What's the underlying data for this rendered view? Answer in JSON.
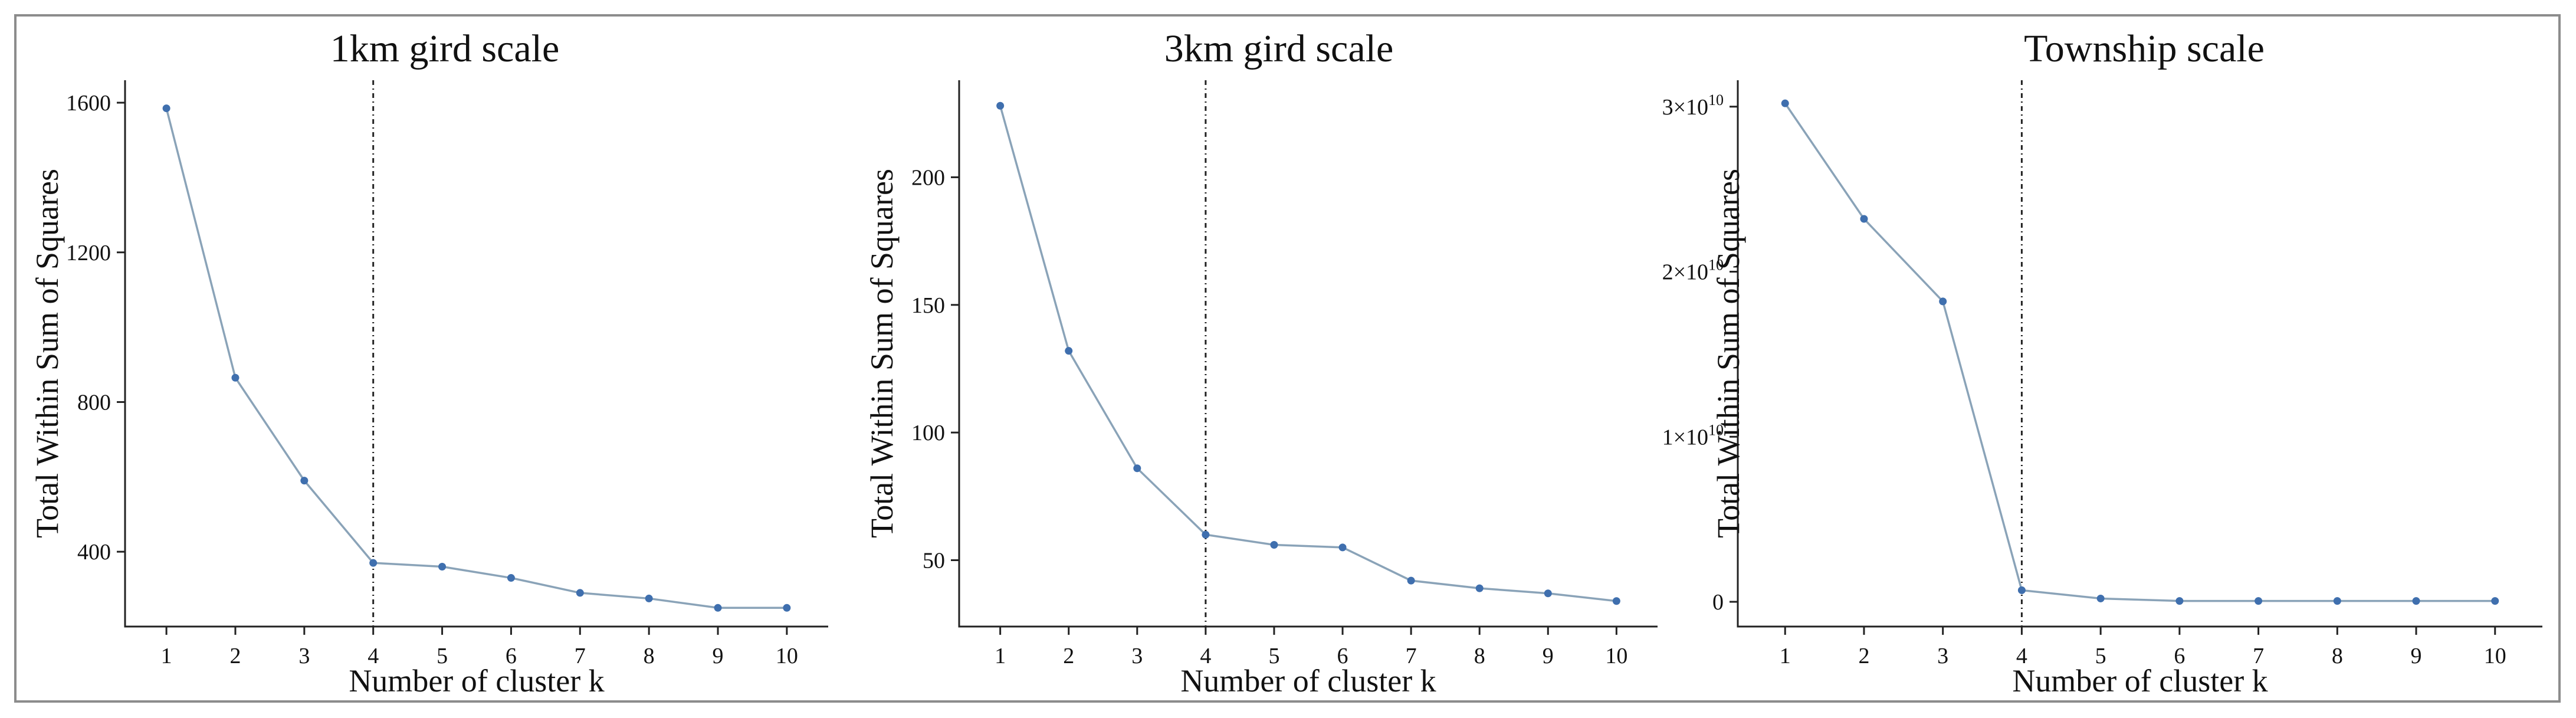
{
  "chart_data": [
    {
      "type": "line",
      "title": "1km gird scale",
      "xlabel": "Number of cluster k",
      "ylabel": "Total Within Sum of Squares",
      "x": [
        1,
        2,
        3,
        4,
        5,
        6,
        7,
        8,
        9,
        10
      ],
      "series": [
        {
          "values": [
            1585,
            865,
            590,
            370,
            360,
            330,
            290,
            275,
            250,
            250
          ]
        }
      ],
      "ylim": [
        200,
        1660
      ],
      "xlim": [
        0.4,
        10.6
      ],
      "yticks": [
        400,
        800,
        1200,
        1600
      ],
      "ytick_labels": [
        "400",
        "800",
        "1200",
        "1600"
      ],
      "xticks": [
        1,
        2,
        3,
        4,
        5,
        6,
        7,
        8,
        9,
        10
      ],
      "xtick_labels": [
        "1",
        "2",
        "3",
        "4",
        "5",
        "6",
        "7",
        "8",
        "9",
        "10"
      ],
      "vline_x": 4,
      "grid": false
    },
    {
      "type": "line",
      "title": "3km gird scale",
      "xlabel": "Number of cluster k",
      "ylabel": "Total Within Sum of Squares",
      "x": [
        1,
        2,
        3,
        4,
        5,
        6,
        7,
        8,
        9,
        10
      ],
      "series": [
        {
          "values": [
            228,
            132,
            86,
            60,
            56,
            55,
            42,
            39,
            37,
            34
          ]
        }
      ],
      "ylim": [
        24,
        238
      ],
      "xlim": [
        0.4,
        10.6
      ],
      "yticks": [
        50,
        100,
        150,
        200
      ],
      "ytick_labels": [
        "50",
        "100",
        "150",
        "200"
      ],
      "xticks": [
        1,
        2,
        3,
        4,
        5,
        6,
        7,
        8,
        9,
        10
      ],
      "xtick_labels": [
        "1",
        "2",
        "3",
        "4",
        "5",
        "6",
        "7",
        "8",
        "9",
        "10"
      ],
      "vline_x": 4,
      "grid": false
    },
    {
      "type": "line",
      "title": "Township scale",
      "xlabel": "Number of cluster k",
      "ylabel": "Total Within Sum of Squares",
      "x": [
        1,
        2,
        3,
        4,
        5,
        6,
        7,
        8,
        9,
        10
      ],
      "series": [
        {
          "values": [
            30200000000.0,
            23200000000.0,
            18200000000.0,
            700000000.0,
            200000000.0,
            50000000.0,
            50000000.0,
            50000000.0,
            50000000.0,
            50000000.0
          ]
        }
      ],
      "ylim": [
        -1500000000.0,
        31600000000.0
      ],
      "xlim": [
        0.4,
        10.6
      ],
      "yticks": [
        0,
        10000000000.0,
        20000000000.0,
        30000000000.0
      ],
      "ytick_labels": [
        "0",
        "1×10",
        "2×10",
        "3×10"
      ],
      "ytick_exponents": [
        "",
        "10",
        "10",
        "10"
      ],
      "xticks": [
        1,
        2,
        3,
        4,
        5,
        6,
        7,
        8,
        9,
        10
      ],
      "xtick_labels": [
        "1",
        "2",
        "3",
        "4",
        "5",
        "6",
        "7",
        "8",
        "9",
        "10"
      ],
      "vline_x": 4,
      "grid": false
    }
  ],
  "colors": {
    "line": "#8aa3b8",
    "marker": "#3f6fae",
    "axis": "#222222",
    "frame": "#8c8c8c"
  }
}
